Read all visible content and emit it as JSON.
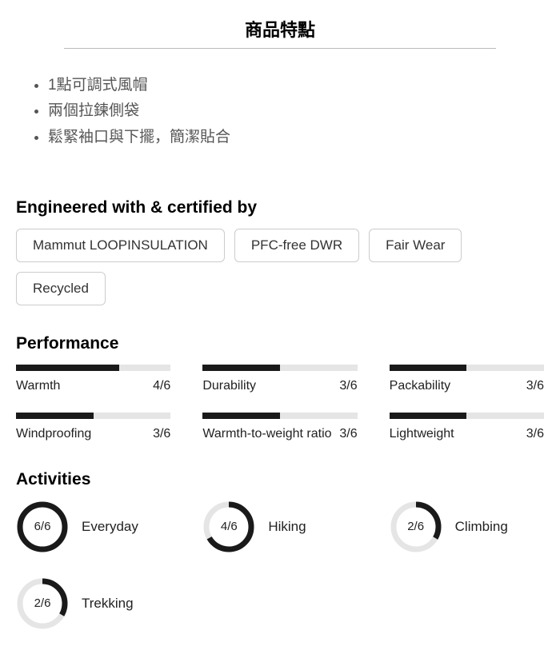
{
  "section_title": "商品特點",
  "features": [
    "1點可調式風帽",
    "兩個拉鍊側袋",
    "鬆緊袖口與下擺，簡潔貼合"
  ],
  "certified": {
    "heading": "Engineered with & certified by",
    "tags": [
      "Mammut LOOPINSULATION",
      "PFC-free DWR",
      "Fair Wear",
      "Recycled"
    ]
  },
  "performance": {
    "heading": "Performance",
    "max": 6,
    "bar_bg": "#e5e5e5",
    "bar_fill": "#1a1a1a",
    "items": [
      {
        "label": "Warmth",
        "value": 4
      },
      {
        "label": "Durability",
        "value": 3
      },
      {
        "label": "Packability",
        "value": 3
      },
      {
        "label": "Windproofing",
        "value": 3
      },
      {
        "label": "Warmth-to-weight ratio",
        "value": 3
      },
      {
        "label": "Lightweight",
        "value": 3
      }
    ]
  },
  "activities": {
    "heading": "Activities",
    "max": 6,
    "ring_bg": "#e5e5e5",
    "ring_fg": "#1a1a1a",
    "ring_radius": 28,
    "ring_stroke": 7,
    "items": [
      {
        "label": "Everyday",
        "value": 6
      },
      {
        "label": "Hiking",
        "value": 4
      },
      {
        "label": "Climbing",
        "value": 2
      },
      {
        "label": "Trekking",
        "value": 2
      }
    ]
  }
}
